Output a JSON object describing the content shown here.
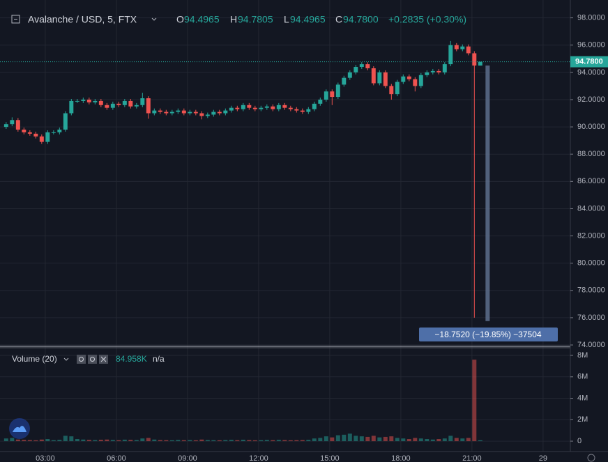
{
  "legend": {
    "symbol": "Avalanche / USD, 5, FTX",
    "o_label": "O",
    "open": "94.4965",
    "h_label": "H",
    "high": "94.7805",
    "l_label": "L",
    "low": "94.4965",
    "c_label": "C",
    "close": "94.7800",
    "change": "+0.2835 (+0.30%)",
    "volume_title": "Volume (20)",
    "volume_value": "84.958K",
    "volume_ma": "n/a"
  },
  "chart_data": {
    "type": "candlestick",
    "up_color": "#26a69a",
    "down_color": "#ef5350",
    "grid": true,
    "xlim": [
      1.09,
      25.15
    ],
    "xticks": [
      {
        "value": 3,
        "label": "03:00"
      },
      {
        "value": 6,
        "label": "06:00"
      },
      {
        "value": 9,
        "label": "09:00"
      },
      {
        "value": 12,
        "label": "12:00"
      },
      {
        "value": 15,
        "label": "15:00"
      },
      {
        "value": 18,
        "label": "18:00"
      },
      {
        "value": 21,
        "label": "21:00"
      },
      {
        "value": 24,
        "label": "29"
      }
    ],
    "ylim": [
      73.9,
      98.9
    ],
    "yticks": [
      {
        "value": 74,
        "label": "74.0000"
      },
      {
        "value": 76,
        "label": "76.0000"
      },
      {
        "value": 78,
        "label": "78.0000"
      },
      {
        "value": 80,
        "label": "80.0000"
      },
      {
        "value": 82,
        "label": "82.0000"
      },
      {
        "value": 84,
        "label": "84.0000"
      },
      {
        "value": 86,
        "label": "86.0000"
      },
      {
        "value": 88,
        "label": "88.0000"
      },
      {
        "value": 90,
        "label": "90.0000"
      },
      {
        "value": 92,
        "label": "92.0000"
      },
      {
        "value": 94,
        "label": "94.0000"
      },
      {
        "value": 96,
        "label": "96.0000"
      },
      {
        "value": 98,
        "label": "98.0000"
      }
    ],
    "x": [
      1.35,
      1.6,
      1.85,
      2.1,
      2.35,
      2.6,
      2.85,
      3.1,
      3.35,
      3.6,
      3.85,
      4.1,
      4.35,
      4.6,
      4.85,
      5.1,
      5.35,
      5.6,
      5.85,
      6.1,
      6.35,
      6.6,
      6.85,
      7.1,
      7.35,
      7.6,
      7.85,
      8.1,
      8.35,
      8.6,
      8.85,
      9.1,
      9.35,
      9.6,
      9.85,
      10.1,
      10.35,
      10.6,
      10.85,
      11.1,
      11.35,
      11.6,
      11.85,
      12.1,
      12.35,
      12.6,
      12.85,
      13.1,
      13.35,
      13.6,
      13.85,
      14.1,
      14.35,
      14.6,
      14.85,
      15.1,
      15.35,
      15.6,
      15.85,
      16.1,
      16.35,
      16.6,
      16.85,
      17.1,
      17.35,
      17.6,
      17.85,
      18.1,
      18.35,
      18.6,
      18.85,
      19.1,
      19.35,
      19.6,
      19.85,
      20.1,
      20.35,
      20.6,
      20.85,
      21.1,
      21.35
    ],
    "open": [
      90.0,
      90.2,
      90.5,
      89.8,
      89.6,
      89.5,
      89.3,
      88.9,
      89.6,
      89.6,
      89.8,
      91.0,
      91.9,
      91.9,
      92.0,
      91.8,
      91.9,
      91.6,
      91.4,
      91.7,
      91.6,
      91.9,
      91.5,
      91.6,
      92.1,
      91.0,
      91.2,
      91.1,
      91.0,
      91.1,
      91.2,
      91.0,
      91.1,
      91.0,
      90.8,
      90.9,
      91.1,
      91.0,
      91.2,
      91.4,
      91.3,
      91.6,
      91.4,
      91.3,
      91.4,
      91.5,
      91.3,
      91.6,
      91.4,
      91.3,
      91.2,
      91.1,
      91.3,
      91.7,
      92.0,
      92.6,
      92.2,
      93.1,
      93.6,
      94.0,
      94.4,
      94.6,
      94.3,
      93.2,
      94.0,
      93.0,
      92.4,
      93.3,
      93.7,
      93.5,
      93.0,
      93.8,
      94.0,
      94.1,
      94.0,
      94.6,
      96.0,
      95.7,
      95.9,
      95.4,
      94.4965
    ],
    "high": [
      90.35,
      90.7,
      90.65,
      89.95,
      89.75,
      89.65,
      89.45,
      89.75,
      89.75,
      89.95,
      91.15,
      92.05,
      92.05,
      92.15,
      92.15,
      92.05,
      92.05,
      91.75,
      91.85,
      91.85,
      92.05,
      92.05,
      91.75,
      92.5,
      92.25,
      91.35,
      91.35,
      91.25,
      91.25,
      91.35,
      91.35,
      91.25,
      91.25,
      91.15,
      91.05,
      91.25,
      91.25,
      91.35,
      91.55,
      91.55,
      91.75,
      91.75,
      91.55,
      91.55,
      91.65,
      91.65,
      91.75,
      91.75,
      91.55,
      91.45,
      91.35,
      91.45,
      91.85,
      92.15,
      92.75,
      92.75,
      93.25,
      93.75,
      94.15,
      94.55,
      94.75,
      94.75,
      94.45,
      94.15,
      94.15,
      93.15,
      93.45,
      93.85,
      93.85,
      93.65,
      93.95,
      94.15,
      94.25,
      94.25,
      94.75,
      96.3,
      96.15,
      96.05,
      96.05,
      95.55,
      94.7805
    ],
    "low": [
      89.85,
      90.05,
      89.65,
      89.45,
      89.35,
      89.15,
      88.75,
      88.75,
      89.45,
      89.45,
      89.65,
      90.85,
      91.75,
      91.75,
      91.65,
      91.65,
      91.45,
      91.25,
      91.25,
      91.45,
      91.45,
      91.35,
      91.35,
      91.45,
      90.6,
      90.85,
      90.95,
      90.85,
      90.85,
      90.95,
      90.85,
      90.85,
      90.85,
      90.55,
      90.65,
      90.75,
      90.85,
      90.85,
      91.05,
      91.15,
      91.15,
      91.25,
      91.15,
      91.15,
      91.25,
      91.15,
      91.15,
      91.25,
      91.15,
      91.05,
      90.95,
      90.95,
      91.15,
      91.55,
      91.85,
      91.6,
      92.05,
      92.95,
      93.45,
      93.85,
      94.25,
      94.15,
      93.05,
      93.05,
      92.85,
      92.0,
      92.25,
      93.15,
      93.35,
      92.6,
      92.85,
      93.65,
      93.85,
      93.85,
      93.85,
      94.45,
      95.55,
      95.55,
      95.25,
      76.0,
      94.4965
    ],
    "close": [
      90.2,
      90.5,
      89.8,
      89.6,
      89.5,
      89.3,
      88.9,
      89.6,
      89.6,
      89.8,
      91.0,
      91.9,
      91.9,
      92.0,
      91.8,
      91.9,
      91.6,
      91.4,
      91.7,
      91.6,
      91.9,
      91.5,
      91.6,
      92.1,
      91.0,
      91.2,
      91.1,
      91.0,
      91.1,
      91.2,
      91.0,
      91.1,
      91.0,
      90.8,
      90.9,
      91.1,
      91.0,
      91.2,
      91.4,
      91.3,
      91.6,
      91.4,
      91.3,
      91.4,
      91.5,
      91.3,
      91.6,
      91.4,
      91.3,
      91.2,
      91.1,
      91.3,
      91.7,
      92.0,
      92.6,
      92.2,
      93.1,
      93.6,
      94.0,
      94.4,
      94.6,
      94.3,
      93.2,
      94.0,
      93.0,
      92.4,
      93.3,
      93.7,
      93.5,
      93.0,
      93.8,
      94.0,
      94.1,
      94.0,
      94.6,
      96.0,
      95.7,
      95.9,
      95.4,
      94.5,
      94.78
    ],
    "last_price": {
      "value": 94.78,
      "label": "94.7800"
    },
    "measure": {
      "x": 21.66,
      "from": 94.5,
      "to": 75.75,
      "label": "−18.7520 (−19.85%) −37504"
    },
    "volume": {
      "ylim": [
        -970000,
        8650000
      ],
      "yticks": [
        0,
        {
          "value": 2000000,
          "label": "2M"
        },
        {
          "value": 4000000,
          "label": "4M"
        },
        {
          "value": 6000000,
          "label": "6M"
        },
        {
          "value": 8000000,
          "label": "8M"
        }
      ],
      "values": [
        250000,
        300000,
        150000,
        120000,
        100000,
        80000,
        150000,
        200000,
        90000,
        120000,
        500000,
        450000,
        200000,
        150000,
        120000,
        100000,
        130000,
        150000,
        110000,
        90000,
        140000,
        120000,
        100000,
        250000,
        300000,
        150000,
        100000,
        90000,
        80000,
        110000,
        90000,
        100000,
        80000,
        150000,
        100000,
        90000,
        80000,
        100000,
        120000,
        90000,
        130000,
        100000,
        80000,
        90000,
        110000,
        90000,
        120000,
        100000,
        80000,
        90000,
        100000,
        120000,
        250000,
        300000,
        450000,
        350000,
        550000,
        600000,
        700000,
        500000,
        450000,
        400000,
        500000,
        350000,
        400000,
        450000,
        300000,
        250000,
        200000,
        300000,
        250000,
        200000,
        150000,
        200000,
        250000,
        500000,
        300000,
        250000,
        300000,
        7600000,
        84958
      ]
    }
  }
}
